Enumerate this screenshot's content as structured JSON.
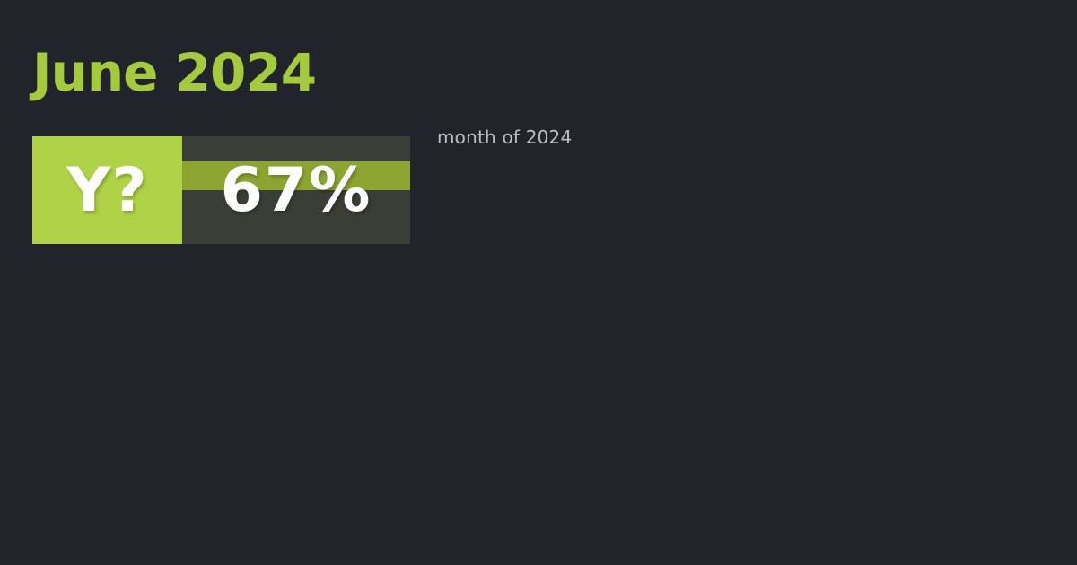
{
  "page": {
    "background_color": "#21252b"
  },
  "title": {
    "text": "June 2024",
    "color": "#a5ca3b"
  },
  "badge": {
    "label": "Y?",
    "value": "67%",
    "label_bg": "#afd246",
    "value_bg": "#3a3e36",
    "stripe_color": "#8da431",
    "text_color": "#ffffff"
  },
  "subtitle": {
    "text": "month of 2024",
    "color": "#bac0c6"
  }
}
